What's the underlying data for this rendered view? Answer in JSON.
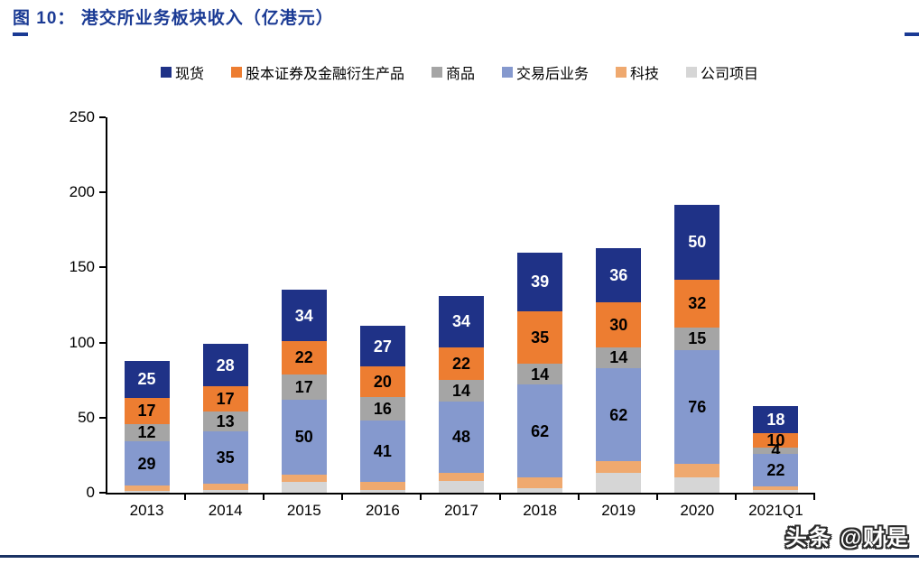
{
  "figure": {
    "title": "图 10：  港交所业务板块收入（亿港元）"
  },
  "watermark": "头条 @财是",
  "chart_data": {
    "type": "bar",
    "stacked": true,
    "title": "港交所业务板块收入（亿港元）",
    "unit": "亿港元",
    "categories": [
      "2013",
      "2014",
      "2015",
      "2016",
      "2017",
      "2018",
      "2019",
      "2020",
      "2021Q1"
    ],
    "series": [
      {
        "name": "现货",
        "color": "#1F3287",
        "label_color": "#FFFFFF",
        "labeled": true,
        "values": [
          25,
          28,
          34,
          27,
          34,
          39,
          36,
          50,
          18
        ]
      },
      {
        "name": "股本证券及金融衍生产品",
        "color": "#ED7D31",
        "label_color": "#000000",
        "labeled": true,
        "values": [
          17,
          17,
          22,
          20,
          22,
          35,
          30,
          32,
          10
        ]
      },
      {
        "name": "商品",
        "color": "#A5A5A5",
        "label_color": "#000000",
        "labeled": true,
        "values": [
          12,
          13,
          17,
          16,
          14,
          14,
          14,
          15,
          4
        ]
      },
      {
        "name": "交易后业务",
        "color": "#8599CE",
        "label_color": "#000000",
        "labeled": true,
        "values": [
          29,
          35,
          50,
          41,
          48,
          62,
          62,
          76,
          22
        ]
      },
      {
        "name": "科技",
        "color": "#EFA96F",
        "label_color": "#000000",
        "labeled": false,
        "values": [
          4,
          4,
          5,
          5,
          5,
          7,
          8,
          9,
          2
        ]
      },
      {
        "name": "公司项目",
        "color": "#D6D6D6",
        "label_color": "#000000",
        "labeled": false,
        "values": [
          1,
          2,
          7,
          2,
          8,
          3,
          13,
          10,
          2
        ]
      }
    ],
    "stack_order_bottom_to_top": [
      "公司项目",
      "科技",
      "交易后业务",
      "商品",
      "股本证券及金融衍生产品",
      "现货"
    ],
    "ylim": [
      0,
      250
    ],
    "yticks": [
      0,
      50,
      100,
      150,
      200,
      250
    ],
    "legend_position": "top",
    "grid": false,
    "axis_color": "#000000"
  }
}
